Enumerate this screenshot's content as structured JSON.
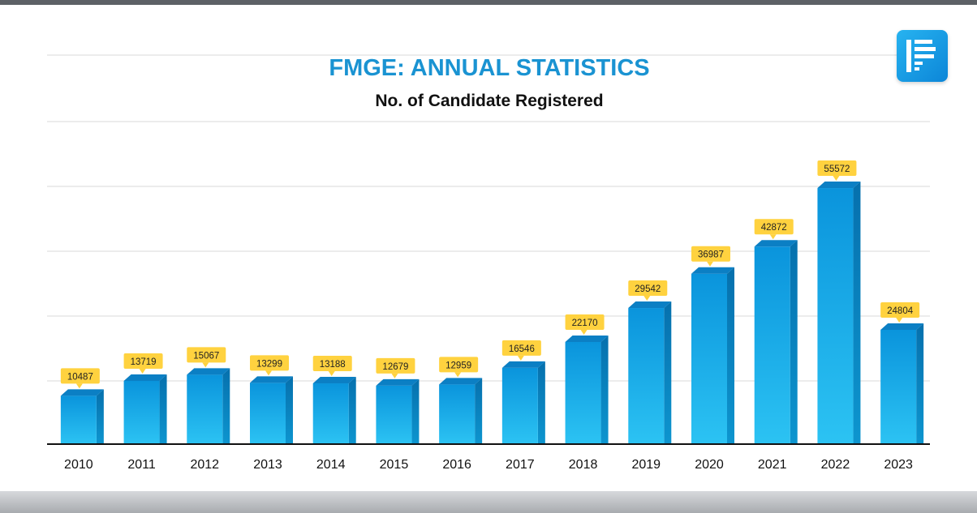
{
  "brand": {
    "logo_icon": "p-logo-icon",
    "accent_color": "#1a93d2",
    "bar_color": "#0d9ee6",
    "label_color": "#ffd23f"
  },
  "chart_data": {
    "type": "bar",
    "title": "FMGE: ANNUAL STATISTICS",
    "subtitle": "No. of Candidate Registered",
    "xlabel": "",
    "ylabel": "",
    "grid": true,
    "legend": "none",
    "ylim": [
      0,
      70000
    ],
    "categories": [
      "2010",
      "2011",
      "2012",
      "2013",
      "2014",
      "2015",
      "2016",
      "2017",
      "2018",
      "2019",
      "2020",
      "2021",
      "2022",
      "2023"
    ],
    "values": [
      10487,
      13719,
      15067,
      13299,
      13188,
      12679,
      12959,
      16546,
      22170,
      29542,
      36987,
      42872,
      55572,
      24804
    ],
    "display_values": [
      10487,
      13719,
      15067,
      13299,
      13188,
      12679,
      12959,
      16546,
      22170,
      29542,
      36987,
      42872,
      55572,
      24804
    ]
  }
}
